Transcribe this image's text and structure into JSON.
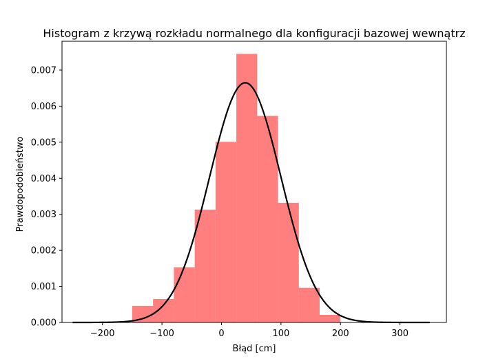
{
  "chart_data": {
    "type": "histogram",
    "title": "Histogram z krzywą rozkładu normalnego dla konfiguracji bazowej wewnątrz",
    "xlabel": "Błąd [cm]",
    "ylabel": "Prawdopodobieństwo",
    "xlim": [
      -268,
      378
    ],
    "ylim": [
      0,
      0.0078
    ],
    "xticks": [
      -200,
      -100,
      0,
      100,
      200,
      300
    ],
    "xtick_labels": [
      "−200",
      "−100",
      "0",
      "100",
      "200",
      "300"
    ],
    "yticks": [
      0,
      0.001,
      0.002,
      0.003,
      0.004,
      0.005,
      0.006,
      0.007
    ],
    "ytick_labels": [
      "0.000",
      "0.001",
      "0.002",
      "0.003",
      "0.004",
      "0.005",
      "0.006",
      "0.007"
    ],
    "grid": false,
    "histogram": {
      "color": "#ff0000",
      "alpha": 0.5,
      "bin_edges": [
        -150,
        -115,
        -80,
        -45,
        -10,
        25,
        60,
        95,
        130,
        165,
        200
      ],
      "densities": [
        0.00046,
        0.00065,
        0.00153,
        0.00313,
        0.00501,
        0.00745,
        0.00573,
        0.00332,
        0.00096,
        0.00021
      ]
    },
    "normal_curve": {
      "color": "#000000",
      "mean": 40,
      "std": 60,
      "x_range": [
        -250,
        350
      ]
    }
  }
}
